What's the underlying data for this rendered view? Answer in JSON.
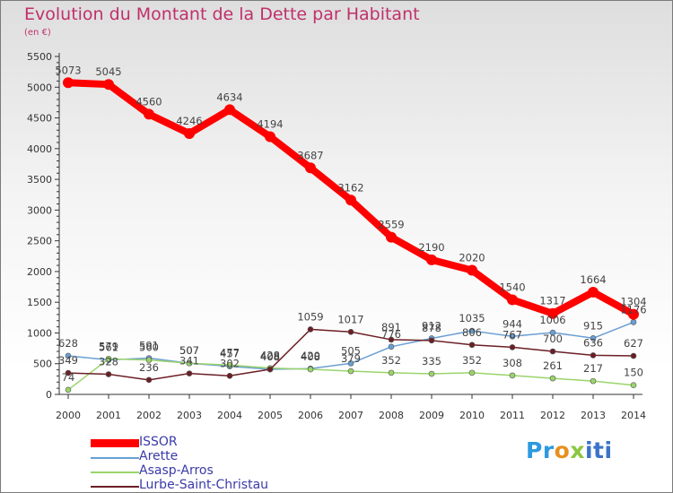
{
  "title": "Evolution du Montant de la Dette par Habitant",
  "subtitle": "(en €)",
  "logo_text": "Proxiti",
  "chart_data": {
    "type": "line",
    "title": "Evolution du Montant de la Dette par Habitant",
    "subtitle": "(en €)",
    "x": [
      "2000",
      "2001",
      "2002",
      "2003",
      "2004",
      "2005",
      "2006",
      "2007",
      "2008",
      "2009",
      "2010",
      "2011",
      "2012",
      "2013",
      "2014"
    ],
    "y_ticks": [
      "0",
      "500",
      "1000",
      "1500",
      "2000",
      "2500",
      "3000",
      "3500",
      "4000",
      "4500",
      "5000",
      "5500"
    ],
    "ylim": [
      0,
      5500
    ],
    "grid": false,
    "legend_position": "bottom-left",
    "series": [
      {
        "name": "ISSOR",
        "color": "#ff0000",
        "values": [
          5073,
          5045,
          4560,
          4246,
          4634,
          4194,
          3687,
          3162,
          2559,
          2190,
          2020,
          1540,
          1317,
          1664,
          1304
        ]
      },
      {
        "name": "Arette",
        "color": "#6a9fd4",
        "values": [
          628,
          561,
          591,
          507,
          457,
          408,
          420,
          505,
          776,
          912,
          1035,
          944,
          1006,
          915,
          1176
        ]
      },
      {
        "name": "Asasp-Arros",
        "color": "#9ad46a",
        "values": [
          74,
          579,
          560,
          507,
          477,
          428,
          408,
          379,
          352,
          335,
          352,
          308,
          261,
          217,
          150
        ]
      },
      {
        "name": "Lurbe-Saint-Christau",
        "color": "#6b1f25",
        "values": [
          349,
          328,
          236,
          341,
          302,
          408,
          1059,
          1017,
          891,
          878,
          806,
          767,
          700,
          636,
          627
        ]
      }
    ]
  }
}
